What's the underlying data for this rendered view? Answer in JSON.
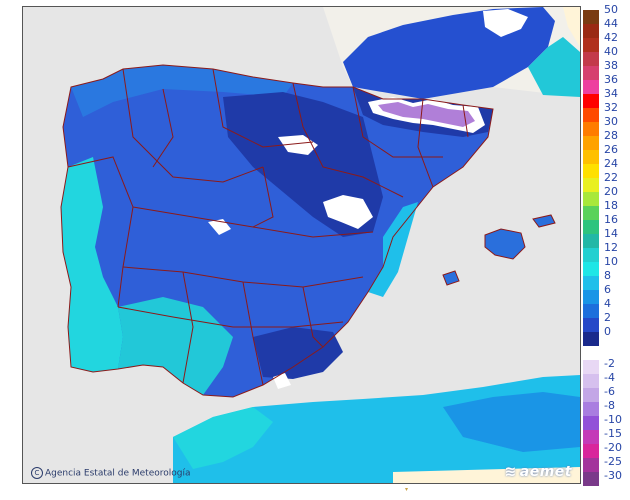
{
  "map": {
    "credit": "Agencia Estatal de Meteorología",
    "brand": "aemet"
  },
  "legend": {
    "positive": [
      {
        "label": "50",
        "color": "#7a3b12"
      },
      {
        "label": "44",
        "color": "#9a2a14"
      },
      {
        "label": "42",
        "color": "#b0301d"
      },
      {
        "label": "40",
        "color": "#c33a4a"
      },
      {
        "label": "38",
        "color": "#d6406e"
      },
      {
        "label": "36",
        "color": "#ee3f9f"
      },
      {
        "label": "34",
        "color": "#ff0000"
      },
      {
        "label": "32",
        "color": "#ff4a00"
      },
      {
        "label": "30",
        "color": "#ff7c00"
      },
      {
        "label": "28",
        "color": "#ffa200"
      },
      {
        "label": "26",
        "color": "#ffc000"
      },
      {
        "label": "24",
        "color": "#ffe000"
      },
      {
        "label": "22",
        "color": "#e9f020"
      },
      {
        "label": "20",
        "color": "#a8e83a"
      },
      {
        "label": "18",
        "color": "#5ad25a"
      },
      {
        "label": "16",
        "color": "#2ec47e"
      },
      {
        "label": "14",
        "color": "#22b8a6"
      },
      {
        "label": "12",
        "color": "#22d0d0"
      },
      {
        "label": "10",
        "color": "#1ee6e6"
      },
      {
        "label": "8",
        "color": "#1fbfea"
      },
      {
        "label": "6",
        "color": "#1a95e6"
      },
      {
        "label": "4",
        "color": "#1d6fdc"
      },
      {
        "label": "2",
        "color": "#2548c8"
      },
      {
        "label": "0",
        "color": "#1a2a8c"
      }
    ],
    "negative": [
      {
        "label": "-2",
        "color": "#e8d8f4"
      },
      {
        "label": "-4",
        "color": "#d6c0ee"
      },
      {
        "label": "-6",
        "color": "#c3a6e6"
      },
      {
        "label": "-8",
        "color": "#a97de0"
      },
      {
        "label": "-10",
        "color": "#9251d8"
      },
      {
        "label": "-15",
        "color": "#c43ab8"
      },
      {
        "label": "-20",
        "color": "#d9259c"
      },
      {
        "label": "-25",
        "color": "#a3349c"
      },
      {
        "label": "-30",
        "color": "#7a3a8a"
      }
    ]
  },
  "colors": {
    "sea": "#e6e6e6",
    "outside_land": "#e8e6de",
    "border": "#8b1a1a",
    "snow": "#ffffff",
    "coastal_cyan": "#22d6df",
    "interior_blue": "#2f5fd8",
    "cold_blue": "#1f3aa8",
    "africa": "#fff4d8"
  }
}
